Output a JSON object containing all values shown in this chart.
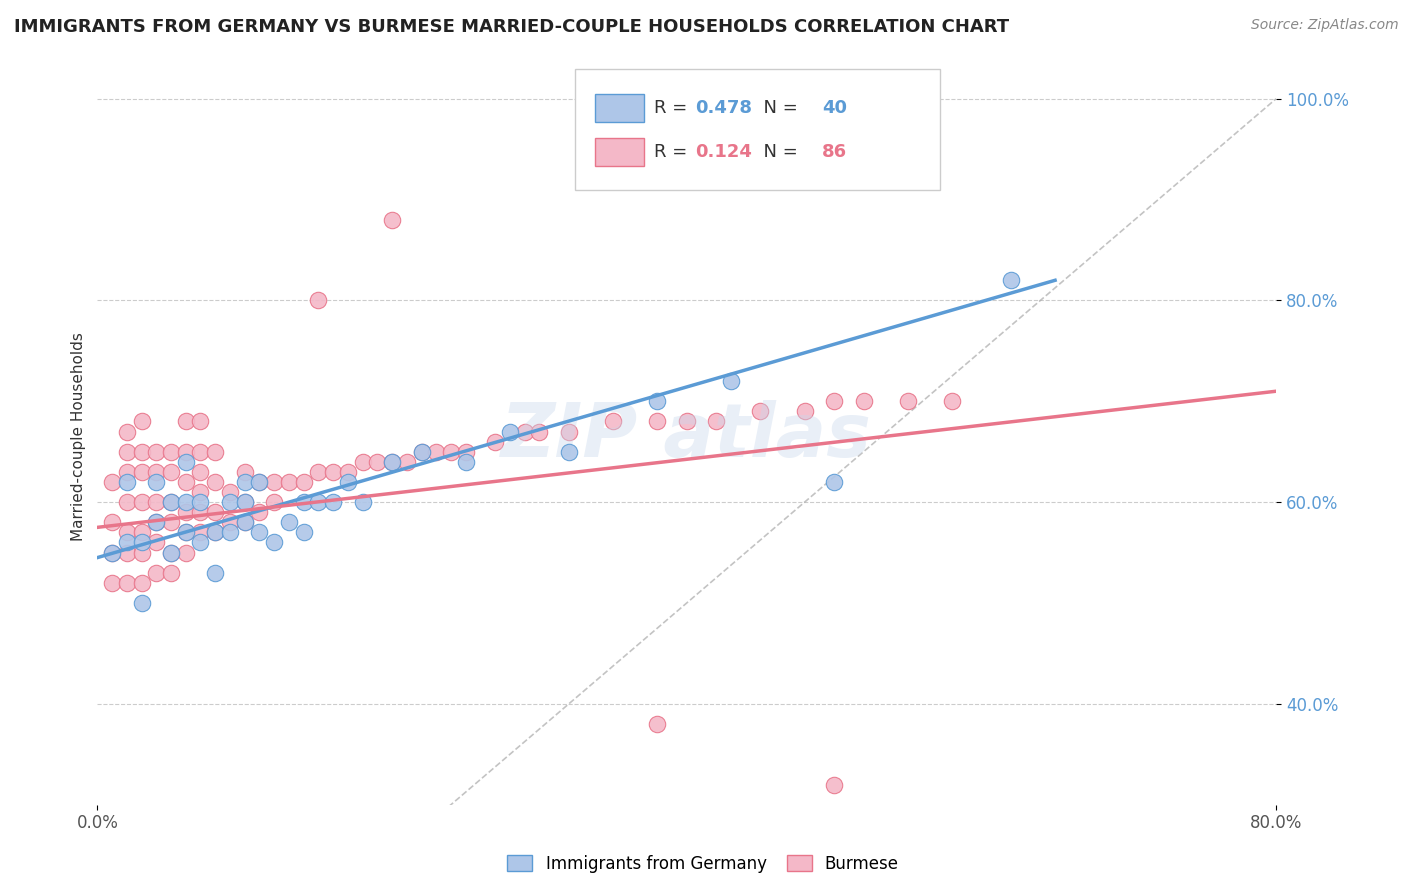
{
  "title": "IMMIGRANTS FROM GERMANY VS BURMESE MARRIED-COUPLE HOUSEHOLDS CORRELATION CHART",
  "source": "Source: ZipAtlas.com",
  "ylabel": "Married-couple Households",
  "x_min": 0.0,
  "x_max": 0.8,
  "y_min": 0.3,
  "y_max": 1.03,
  "y_ticks": [
    0.4,
    0.6,
    0.8,
    1.0
  ],
  "y_tick_labels": [
    "40.0%",
    "60.0%",
    "80.0%",
    "100.0%"
  ],
  "legend_label1": "Immigrants from Germany",
  "legend_label2": "Burmese",
  "R1": 0.478,
  "N1": 40,
  "R2": 0.124,
  "N2": 86,
  "blue_color": "#aec6e8",
  "pink_color": "#f4b8c8",
  "line1_color": "#5b9bd5",
  "line2_color": "#e8758a",
  "blue_scatter_x": [
    0.01,
    0.02,
    0.02,
    0.03,
    0.03,
    0.04,
    0.04,
    0.05,
    0.05,
    0.06,
    0.06,
    0.06,
    0.07,
    0.07,
    0.08,
    0.08,
    0.09,
    0.09,
    0.1,
    0.1,
    0.1,
    0.11,
    0.11,
    0.12,
    0.13,
    0.14,
    0.14,
    0.15,
    0.16,
    0.17,
    0.18,
    0.2,
    0.22,
    0.25,
    0.28,
    0.32,
    0.38,
    0.43,
    0.5,
    0.62
  ],
  "blue_scatter_y": [
    0.55,
    0.56,
    0.62,
    0.5,
    0.56,
    0.58,
    0.62,
    0.55,
    0.6,
    0.57,
    0.6,
    0.64,
    0.56,
    0.6,
    0.53,
    0.57,
    0.57,
    0.6,
    0.58,
    0.6,
    0.62,
    0.57,
    0.62,
    0.56,
    0.58,
    0.57,
    0.6,
    0.6,
    0.6,
    0.62,
    0.6,
    0.64,
    0.65,
    0.64,
    0.67,
    0.65,
    0.7,
    0.72,
    0.62,
    0.82
  ],
  "pink_scatter_x": [
    0.01,
    0.01,
    0.01,
    0.01,
    0.02,
    0.02,
    0.02,
    0.02,
    0.02,
    0.02,
    0.02,
    0.03,
    0.03,
    0.03,
    0.03,
    0.03,
    0.03,
    0.03,
    0.04,
    0.04,
    0.04,
    0.04,
    0.04,
    0.04,
    0.05,
    0.05,
    0.05,
    0.05,
    0.05,
    0.05,
    0.06,
    0.06,
    0.06,
    0.06,
    0.06,
    0.06,
    0.07,
    0.07,
    0.07,
    0.07,
    0.07,
    0.07,
    0.08,
    0.08,
    0.08,
    0.08,
    0.09,
    0.09,
    0.1,
    0.1,
    0.1,
    0.11,
    0.11,
    0.12,
    0.12,
    0.13,
    0.14,
    0.15,
    0.16,
    0.17,
    0.18,
    0.19,
    0.2,
    0.21,
    0.22,
    0.23,
    0.24,
    0.25,
    0.27,
    0.29,
    0.3,
    0.32,
    0.35,
    0.38,
    0.4,
    0.42,
    0.45,
    0.48,
    0.5,
    0.52,
    0.55,
    0.58,
    0.38,
    0.5,
    0.15,
    0.2
  ],
  "pink_scatter_y": [
    0.52,
    0.55,
    0.58,
    0.62,
    0.52,
    0.55,
    0.57,
    0.6,
    0.63,
    0.65,
    0.67,
    0.52,
    0.55,
    0.57,
    0.6,
    0.63,
    0.65,
    0.68,
    0.53,
    0.56,
    0.58,
    0.6,
    0.63,
    0.65,
    0.53,
    0.55,
    0.58,
    0.6,
    0.63,
    0.65,
    0.55,
    0.57,
    0.59,
    0.62,
    0.65,
    0.68,
    0.57,
    0.59,
    0.61,
    0.63,
    0.65,
    0.68,
    0.57,
    0.59,
    0.62,
    0.65,
    0.58,
    0.61,
    0.58,
    0.6,
    0.63,
    0.59,
    0.62,
    0.6,
    0.62,
    0.62,
    0.62,
    0.63,
    0.63,
    0.63,
    0.64,
    0.64,
    0.64,
    0.64,
    0.65,
    0.65,
    0.65,
    0.65,
    0.66,
    0.67,
    0.67,
    0.67,
    0.68,
    0.68,
    0.68,
    0.68,
    0.69,
    0.69,
    0.7,
    0.7,
    0.7,
    0.7,
    0.38,
    0.32,
    0.8,
    0.88
  ],
  "blue_line_x0": 0.0,
  "blue_line_y0": 0.545,
  "blue_line_x1": 0.65,
  "blue_line_y1": 0.82,
  "pink_line_x0": 0.0,
  "pink_line_y0": 0.575,
  "pink_line_x1": 0.8,
  "pink_line_y1": 0.71
}
